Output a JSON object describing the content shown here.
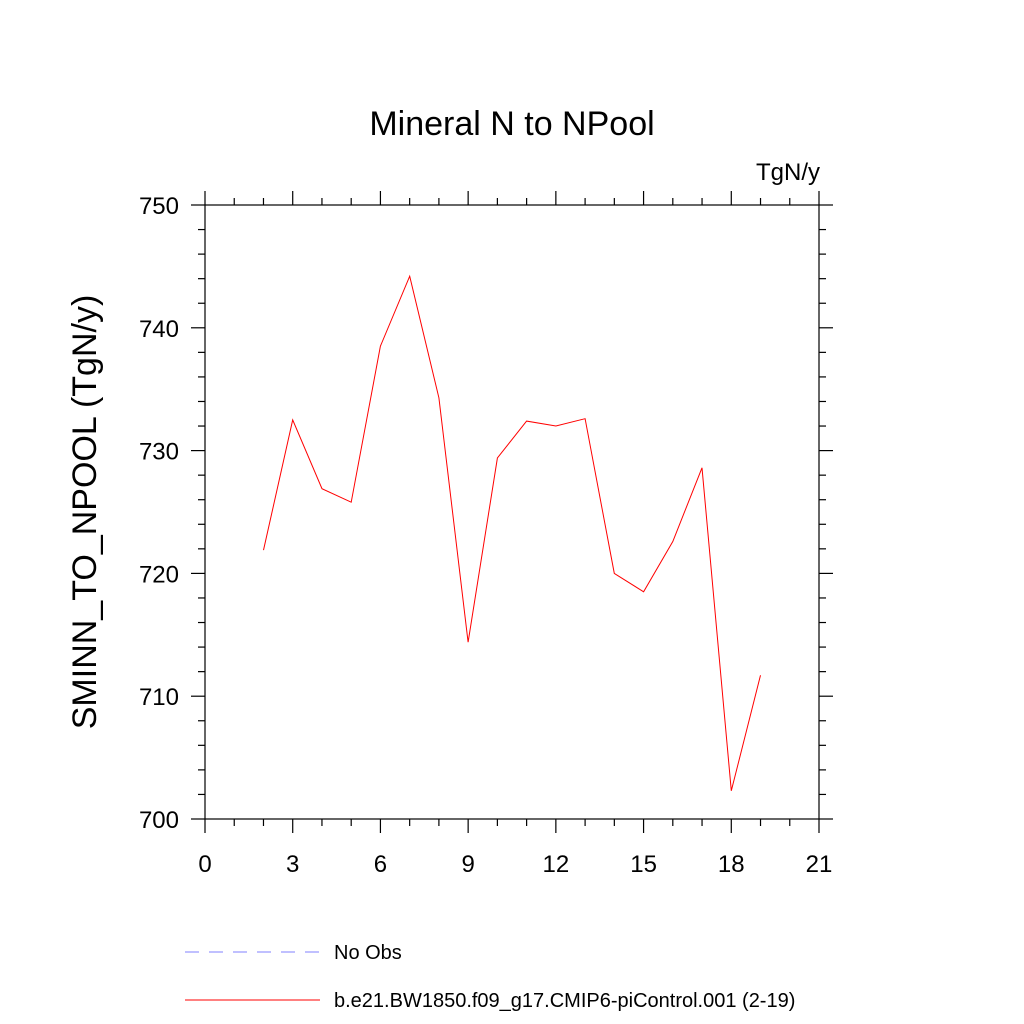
{
  "chart_data": {
    "type": "line",
    "title": "Mineral N to NPool",
    "units_label": "TgN/y",
    "ylabel": "SMINN_TO_NPOOL  (TgN/y)",
    "xlabel": "",
    "xlim": [
      0,
      21
    ],
    "ylim": [
      700,
      750
    ],
    "xticks": [
      0,
      3,
      6,
      9,
      12,
      15,
      18,
      21
    ],
    "yticks": [
      700,
      710,
      720,
      730,
      740,
      750
    ],
    "grid": false,
    "legend_position": "bottom",
    "series": [
      {
        "name": "No Obs",
        "color": "#8080ff",
        "style": "dashed",
        "x": [],
        "y": []
      },
      {
        "name": "b.e21.BW1850.f09_g17.CMIP6-piControl.001 (2-19)",
        "color": "#ff0000",
        "style": "solid",
        "x": [
          2,
          3,
          4,
          5,
          6,
          7,
          8,
          9,
          10,
          11,
          12,
          13,
          14,
          15,
          16,
          17,
          18,
          19
        ],
        "y": [
          721.9,
          732.5,
          726.9,
          725.8,
          738.5,
          744.2,
          734.3,
          714.4,
          729.4,
          732.4,
          732.0,
          732.6,
          720.0,
          718.5,
          722.6,
          728.6,
          702.3,
          711.7
        ]
      }
    ]
  }
}
